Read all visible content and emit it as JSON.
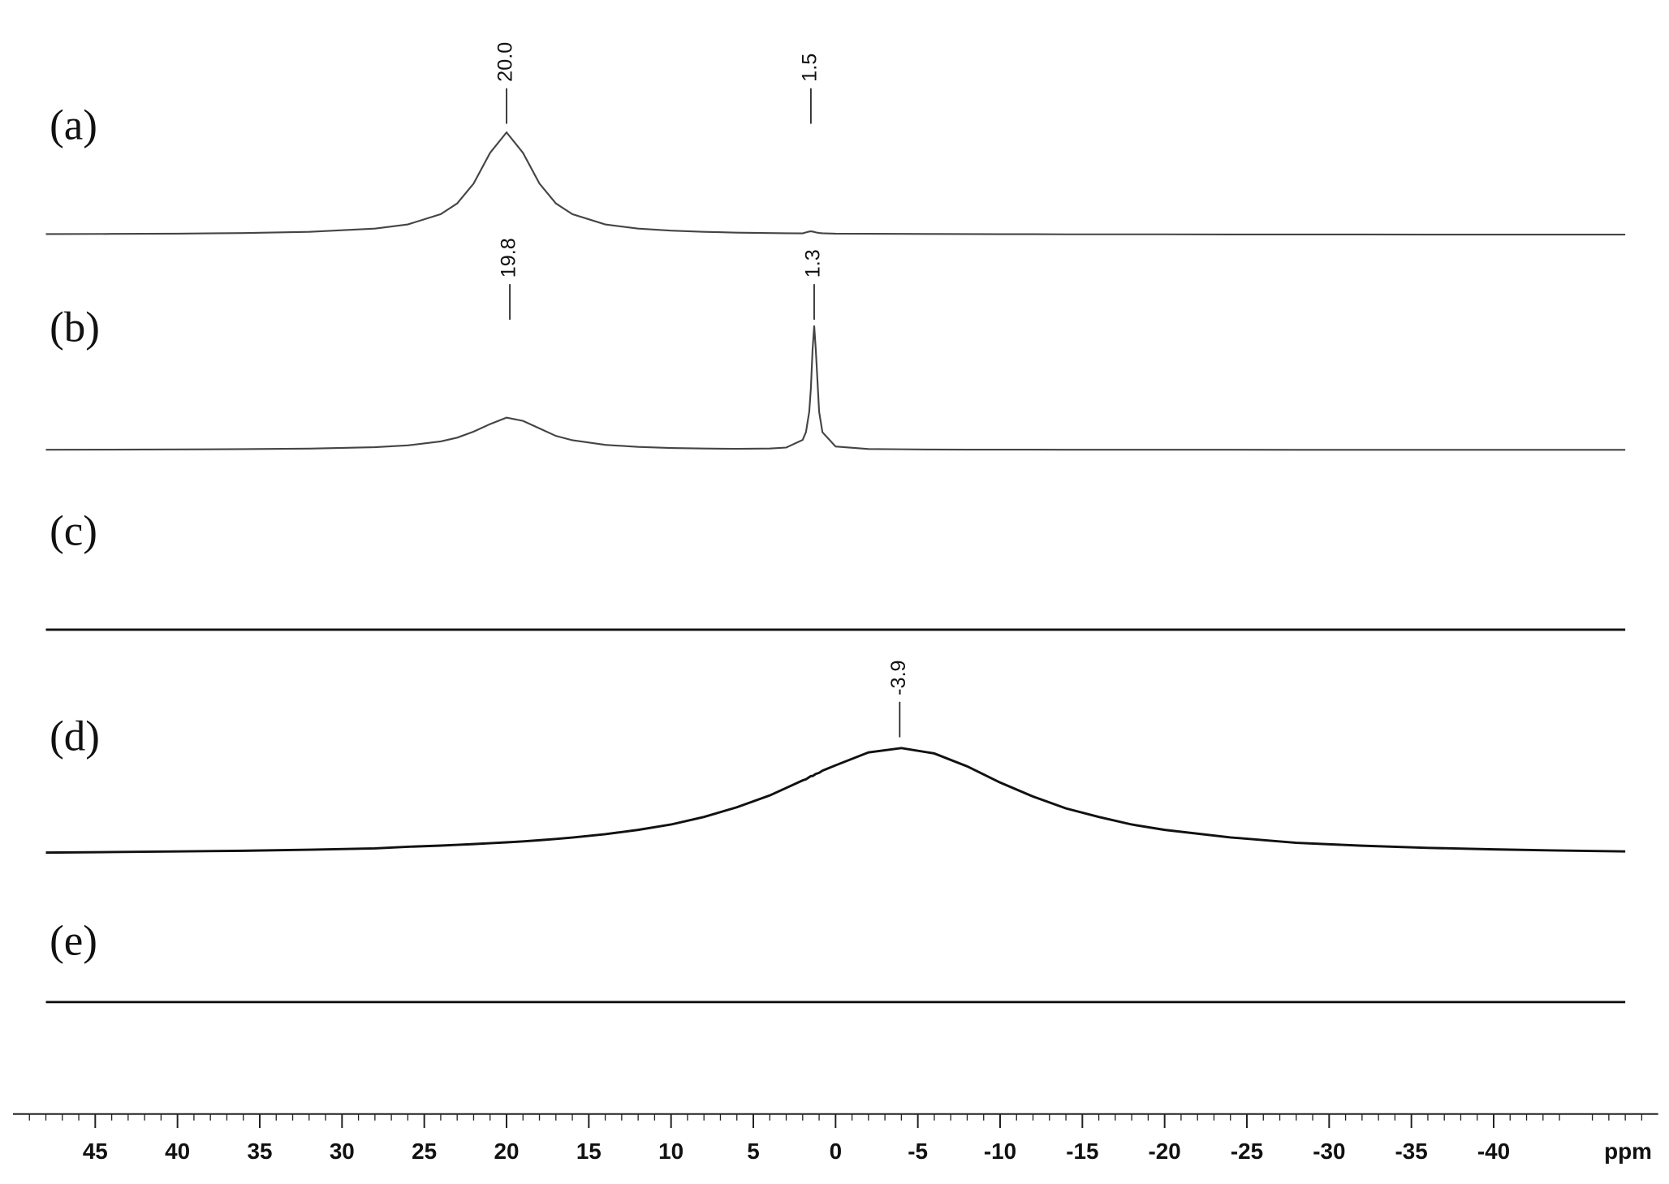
{
  "chart_data": {
    "type": "spectra",
    "xlabel": "ppm",
    "xlim": [
      50,
      -50
    ],
    "xticks": [
      45,
      40,
      35,
      30,
      25,
      20,
      15,
      10,
      5,
      0,
      -5,
      -10,
      -15,
      -20,
      -25,
      -30,
      -35,
      -40
    ],
    "x": [
      48,
      44,
      40,
      36,
      32,
      28,
      26,
      24,
      23,
      22,
      21,
      20,
      19,
      18,
      17,
      16,
      14,
      12,
      10,
      8,
      6,
      4,
      3,
      2,
      1.8,
      1.6,
      1.5,
      1.4,
      1.3,
      1.2,
      1.0,
      0.8,
      0,
      -2,
      -4,
      -6,
      -8,
      -10,
      -12,
      -14,
      -16,
      -18,
      -20,
      -24,
      -28,
      -32,
      -36,
      -40,
      -44,
      -48
    ],
    "series": [
      {
        "name": "(a)",
        "color": "#444444",
        "values": [
          0.5,
          0.7,
          0.9,
          1.5,
          2.6,
          5.6,
          9.5,
          19,
          29,
          47.5,
          76,
          95,
          76,
          47.5,
          29,
          19,
          9.5,
          5.6,
          3.7,
          2.6,
          1.9,
          1.5,
          1.3,
          1.2,
          2.1,
          2.9,
          3.1,
          2.9,
          2.5,
          2.1,
          1.6,
          1.3,
          0.9,
          0.8,
          0.7,
          0.6,
          0.5,
          0.4,
          0.4,
          0.3,
          0.3,
          0.3,
          0.3,
          0.2,
          0.2,
          0.2,
          0.1,
          0.1,
          0.1,
          0.1
        ],
        "peaks": [
          {
            "value": 20,
            "label": "20.0"
          },
          1.5
        ]
      },
      {
        "name": "(b)",
        "color": "#444444",
        "values": [
          0.2,
          0.3,
          0.45,
          0.7,
          1.2,
          2.5,
          4.2,
          7.9,
          11.4,
          17,
          24,
          30,
          27,
          20,
          13,
          9,
          4.7,
          2.8,
          1.8,
          1.3,
          1,
          1.3,
          2.2,
          9.3,
          16.6,
          35.6,
          57.6,
          92.5,
          115.5,
          92.5,
          35.5,
          16.5,
          3.2,
          0.85,
          0.6,
          0.35,
          0.3,
          0.3,
          0.25,
          0.2,
          0.2,
          0.2,
          0.2,
          0.15,
          0.1,
          0.1,
          0.1,
          0.1,
          0.1,
          0.1
        ],
        "peaks": [
          19.8,
          1.3
        ]
      },
      {
        "name": "(c)",
        "color": "#111111",
        "values": [
          0,
          0,
          0,
          0,
          0,
          0,
          0,
          0,
          0,
          0,
          0,
          0,
          0,
          0,
          0,
          0,
          0,
          0,
          0,
          0,
          0,
          0,
          0,
          0,
          0,
          0,
          0,
          0,
          0,
          0,
          0,
          0,
          0,
          0,
          0,
          0,
          0,
          0,
          0,
          0,
          0,
          0,
          0,
          0,
          0,
          0,
          0,
          0,
          0,
          0
        ],
        "peaks": []
      },
      {
        "name": "(d)",
        "color": "#111111",
        "values": [
          2.9,
          3.4,
          4,
          4.6,
          5.6,
          6.8,
          8.3,
          9.4,
          10.1,
          10.8,
          11.6,
          12.4,
          13.3,
          14.4,
          15.6,
          16.9,
          20,
          24,
          29,
          36,
          45,
          56,
          63,
          70,
          71,
          73,
          74,
          74,
          75,
          76,
          77,
          79,
          84,
          96,
          100,
          95,
          83,
          68,
          55,
          44,
          36,
          29,
          24,
          17,
          12,
          9.3,
          7.3,
          5.9,
          4.8,
          4
        ],
        "peaks": [
          -3.9
        ]
      },
      {
        "name": "(e)",
        "color": "#111111",
        "values": [
          0,
          0,
          0,
          0,
          0,
          0,
          0,
          0,
          0,
          0,
          0,
          0,
          0,
          0,
          0,
          0,
          0,
          0,
          0,
          0,
          0,
          0,
          0,
          0,
          0,
          0,
          0,
          0,
          0,
          0,
          0,
          0,
          0,
          0,
          0,
          0,
          0,
          0,
          0,
          0,
          0,
          0,
          0,
          0,
          0,
          0,
          0,
          0,
          0,
          0
        ],
        "peaks": []
      }
    ]
  }
}
